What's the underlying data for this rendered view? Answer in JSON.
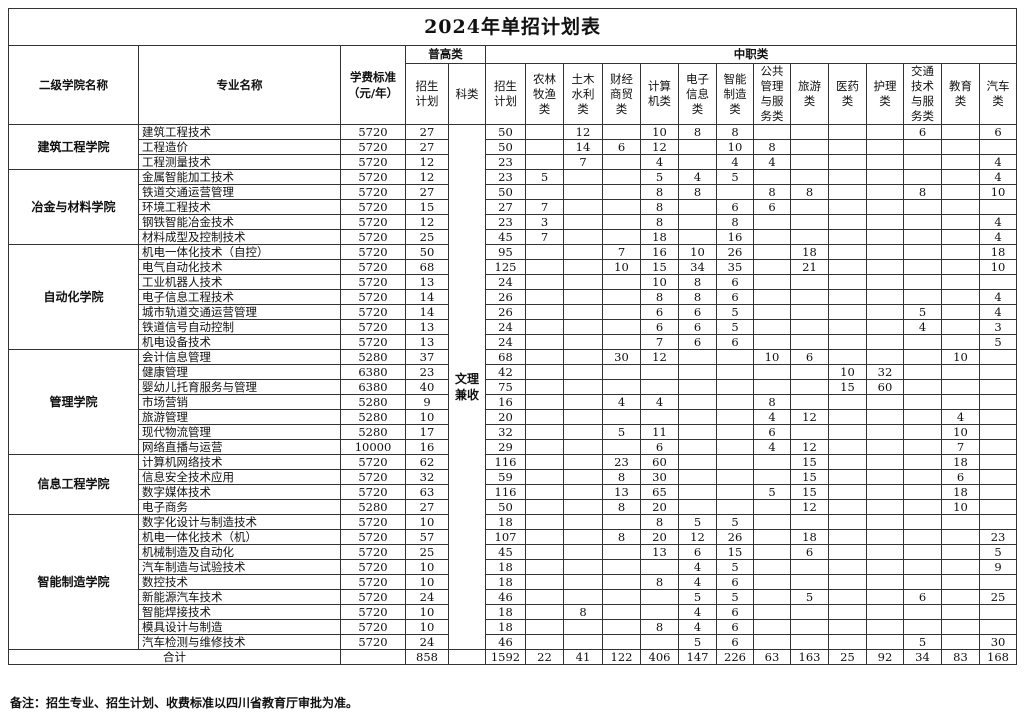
{
  "title": "2024年单招计划表",
  "headers": {
    "college": "二级学院名称",
    "major": "专业名称",
    "fee": "学费标准（元/年）",
    "pugao_group": "普高类",
    "zhongzhi_group": "中职类",
    "pugao_plan": "招生计划",
    "kelei": "科类",
    "zhongzhi_plan": "招生计划",
    "categories": [
      "农林牧渔类",
      "土木水利类",
      "财经商贸类",
      "计算机类",
      "电子信息类",
      "智能制造类",
      "公共管理与服务类",
      "旅游类",
      "医药类",
      "护理类",
      "交通技术与服务类",
      "教育类",
      "汽车类"
    ]
  },
  "kelei_value": "文理兼收",
  "colleges": [
    {
      "name": "建筑工程学院",
      "rows": [
        [
          "建筑工程技术",
          "5720",
          "27",
          "50",
          "",
          "12",
          "",
          "10",
          "8",
          "8",
          "",
          "",
          "",
          "",
          "6",
          "",
          "6"
        ],
        [
          "工程造价",
          "5720",
          "27",
          "50",
          "",
          "14",
          "6",
          "12",
          "",
          "10",
          "8",
          "",
          "",
          "",
          "",
          "",
          ""
        ],
        [
          "工程测量技术",
          "5720",
          "12",
          "23",
          "",
          "7",
          "",
          "4",
          "",
          "4",
          "4",
          "",
          "",
          "",
          "",
          "",
          "4"
        ]
      ]
    },
    {
      "name": "冶金与材料学院",
      "rows": [
        [
          "金属智能加工技术",
          "5720",
          "12",
          "23",
          "5",
          "",
          "",
          "5",
          "4",
          "5",
          "",
          "",
          "",
          "",
          "",
          "",
          "4"
        ],
        [
          "铁道交通运营管理",
          "5720",
          "27",
          "50",
          "",
          "",
          "",
          "8",
          "8",
          "",
          "8",
          "8",
          "",
          "",
          "8",
          "",
          "10"
        ],
        [
          "环境工程技术",
          "5720",
          "15",
          "27",
          "7",
          "",
          "",
          "8",
          "",
          "6",
          "6",
          "",
          "",
          "",
          "",
          "",
          ""
        ],
        [
          "钢铁智能冶金技术",
          "5720",
          "12",
          "23",
          "3",
          "",
          "",
          "8",
          "",
          "8",
          "",
          "",
          "",
          "",
          "",
          "",
          "4"
        ],
        [
          "材料成型及控制技术",
          "5720",
          "25",
          "45",
          "7",
          "",
          "",
          "18",
          "",
          "16",
          "",
          "",
          "",
          "",
          "",
          "",
          "4"
        ]
      ]
    },
    {
      "name": "自动化学院",
      "rows": [
        [
          "机电一体化技术（自控）",
          "5720",
          "50",
          "95",
          "",
          "",
          "7",
          "16",
          "10",
          "26",
          "",
          "18",
          "",
          "",
          "",
          "",
          "18"
        ],
        [
          "电气自动化技术",
          "5720",
          "68",
          "125",
          "",
          "",
          "10",
          "15",
          "34",
          "35",
          "",
          "21",
          "",
          "",
          "",
          "",
          "10"
        ],
        [
          "工业机器人技术",
          "5720",
          "13",
          "24",
          "",
          "",
          "",
          "10",
          "8",
          "6",
          "",
          "",
          "",
          "",
          "",
          "",
          ""
        ],
        [
          "电子信息工程技术",
          "5720",
          "14",
          "26",
          "",
          "",
          "",
          "8",
          "8",
          "6",
          "",
          "",
          "",
          "",
          "",
          "",
          "4"
        ],
        [
          "城市轨道交通运营管理",
          "5720",
          "14",
          "26",
          "",
          "",
          "",
          "6",
          "6",
          "5",
          "",
          "",
          "",
          "",
          "5",
          "",
          "4"
        ],
        [
          "铁道信号自动控制",
          "5720",
          "13",
          "24",
          "",
          "",
          "",
          "6",
          "6",
          "5",
          "",
          "",
          "",
          "",
          "4",
          "",
          "3"
        ],
        [
          "机电设备技术",
          "5720",
          "13",
          "24",
          "",
          "",
          "",
          "7",
          "6",
          "6",
          "",
          "",
          "",
          "",
          "",
          "",
          "5"
        ]
      ]
    },
    {
      "name": "管理学院",
      "rows": [
        [
          "会计信息管理",
          "5280",
          "37",
          "68",
          "",
          "",
          "30",
          "12",
          "",
          "",
          "10",
          "6",
          "",
          "",
          "",
          "10",
          ""
        ],
        [
          "健康管理",
          "6380",
          "23",
          "42",
          "",
          "",
          "",
          "",
          "",
          "",
          "",
          "",
          "10",
          "32",
          "",
          "",
          ""
        ],
        [
          "婴幼儿托育服务与管理",
          "6380",
          "40",
          "75",
          "",
          "",
          "",
          "",
          "",
          "",
          "",
          "",
          "15",
          "60",
          "",
          "",
          ""
        ],
        [
          "市场营销",
          "5280",
          "9",
          "16",
          "",
          "",
          "4",
          "4",
          "",
          "",
          "8",
          "",
          "",
          "",
          "",
          "",
          ""
        ],
        [
          "旅游管理",
          "5280",
          "10",
          "20",
          "",
          "",
          "",
          "",
          "",
          "",
          "4",
          "12",
          "",
          "",
          "",
          "4",
          ""
        ],
        [
          "现代物流管理",
          "5280",
          "17",
          "32",
          "",
          "",
          "5",
          "11",
          "",
          "",
          "6",
          "",
          "",
          "",
          "",
          "10",
          ""
        ],
        [
          "网络直播与运营",
          "10000",
          "16",
          "29",
          "",
          "",
          "",
          "6",
          "",
          "",
          "4",
          "12",
          "",
          "",
          "",
          "7",
          ""
        ]
      ]
    },
    {
      "name": "信息工程学院",
      "rows": [
        [
          "计算机网络技术",
          "5720",
          "62",
          "116",
          "",
          "",
          "23",
          "60",
          "",
          "",
          "",
          "15",
          "",
          "",
          "",
          "18",
          ""
        ],
        [
          "信息安全技术应用",
          "5720",
          "32",
          "59",
          "",
          "",
          "8",
          "30",
          "",
          "",
          "",
          "15",
          "",
          "",
          "",
          "6",
          ""
        ],
        [
          "数字媒体技术",
          "5720",
          "63",
          "116",
          "",
          "",
          "13",
          "65",
          "",
          "",
          "5",
          "15",
          "",
          "",
          "",
          "18",
          ""
        ],
        [
          "电子商务",
          "5280",
          "27",
          "50",
          "",
          "",
          "8",
          "20",
          "",
          "",
          "",
          "12",
          "",
          "",
          "",
          "10",
          ""
        ]
      ]
    },
    {
      "name": "智能制造学院",
      "rows": [
        [
          "数字化设计与制造技术",
          "5720",
          "10",
          "18",
          "",
          "",
          "",
          "8",
          "5",
          "5",
          "",
          "",
          "",
          "",
          "",
          "",
          ""
        ],
        [
          "机电一体化技术（机）",
          "5720",
          "57",
          "107",
          "",
          "",
          "8",
          "20",
          "12",
          "26",
          "",
          "18",
          "",
          "",
          "",
          "",
          "23"
        ],
        [
          "机械制造及自动化",
          "5720",
          "25",
          "45",
          "",
          "",
          "",
          "13",
          "6",
          "15",
          "",
          "6",
          "",
          "",
          "",
          "",
          "5"
        ],
        [
          "汽车制造与试验技术",
          "5720",
          "10",
          "18",
          "",
          "",
          "",
          "",
          "4",
          "5",
          "",
          "",
          "",
          "",
          "",
          "",
          "9"
        ],
        [
          "数控技术",
          "5720",
          "10",
          "18",
          "",
          "",
          "",
          "8",
          "4",
          "6",
          "",
          "",
          "",
          "",
          "",
          "",
          ""
        ],
        [
          "新能源汽车技术",
          "5720",
          "24",
          "46",
          "",
          "",
          "",
          "",
          "5",
          "5",
          "",
          "5",
          "",
          "",
          "6",
          "",
          "25"
        ],
        [
          "智能焊接技术",
          "5720",
          "10",
          "18",
          "",
          "8",
          "",
          "",
          "4",
          "6",
          "",
          "",
          "",
          "",
          "",
          "",
          ""
        ],
        [
          "模具设计与制造",
          "5720",
          "10",
          "18",
          "",
          "",
          "",
          "8",
          "4",
          "6",
          "",
          "",
          "",
          "",
          "",
          "",
          ""
        ],
        [
          "汽车检测与维修技术",
          "5720",
          "24",
          "46",
          "",
          "",
          "",
          "",
          "5",
          "6",
          "",
          "",
          "",
          "",
          "5",
          "",
          "30"
        ]
      ]
    }
  ],
  "total": {
    "label": "合计",
    "pugao_plan": "858",
    "zhongzhi_plan": "1592",
    "categories": [
      "22",
      "41",
      "122",
      "406",
      "147",
      "226",
      "63",
      "163",
      "25",
      "92",
      "34",
      "83",
      "168"
    ]
  },
  "note": "备注：招生专业、招生计划、收费标准以四川省教育厅审批为准。"
}
